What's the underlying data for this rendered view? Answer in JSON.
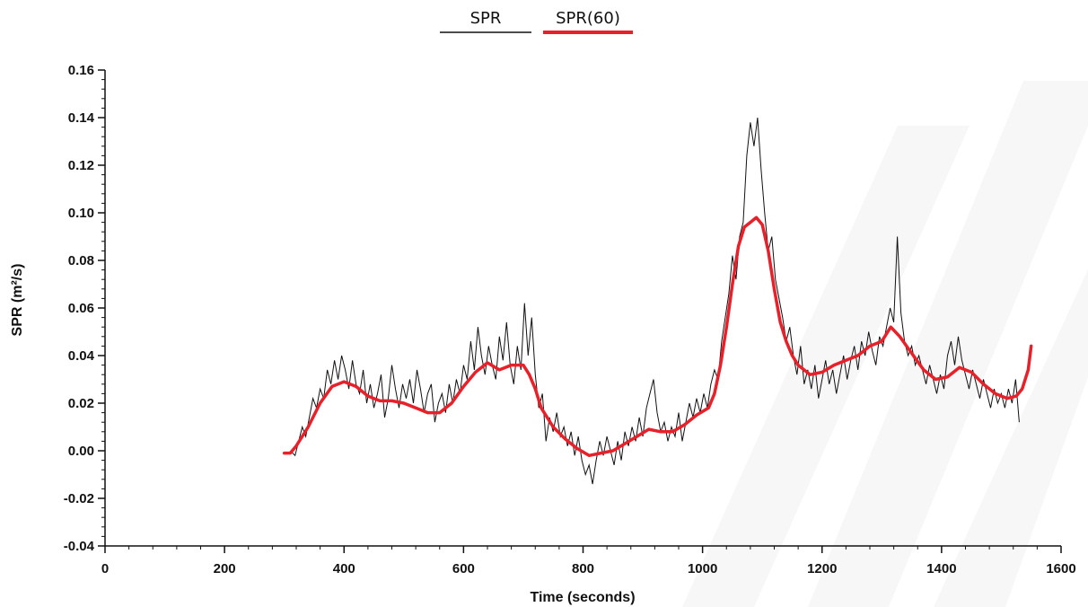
{
  "chart_data": {
    "type": "line",
    "title": "",
    "xlabel": "Time (seconds)",
    "ylabel": "SPR (m²/s)",
    "xlim": [
      0,
      1600
    ],
    "ylim": [
      -0.04,
      0.16
    ],
    "x_ticks": [
      0,
      200,
      400,
      600,
      800,
      1000,
      1200,
      1400,
      1600
    ],
    "y_ticks": [
      -0.04,
      -0.02,
      0.0,
      0.02,
      0.04,
      0.06,
      0.08,
      0.1,
      0.12,
      0.14,
      0.16
    ],
    "y_tick_labels": [
      "-0.04",
      "-0.02",
      "0.00",
      "0.02",
      "0.04",
      "0.06",
      "0.08",
      "0.10",
      "0.12",
      "0.14",
      "0.16"
    ],
    "x_tick_labels": [
      "0",
      "200",
      "400",
      "600",
      "800",
      "1000",
      "1200",
      "1400",
      "1600"
    ],
    "grid": false,
    "legend": {
      "placement": "top-center",
      "entries": [
        {
          "label": "SPR",
          "color": "#111111"
        },
        {
          "label": "SPR(60)",
          "color": "#e8202a"
        }
      ]
    },
    "series": [
      {
        "name": "SPR",
        "color": "#111111",
        "points": [
          [
            310,
            0.0
          ],
          [
            318,
            -0.002
          ],
          [
            324,
            0.004
          ],
          [
            330,
            0.01
          ],
          [
            336,
            0.006
          ],
          [
            342,
            0.014
          ],
          [
            348,
            0.022
          ],
          [
            354,
            0.018
          ],
          [
            360,
            0.026
          ],
          [
            366,
            0.022
          ],
          [
            372,
            0.034
          ],
          [
            378,
            0.028
          ],
          [
            384,
            0.038
          ],
          [
            390,
            0.03
          ],
          [
            396,
            0.04
          ],
          [
            402,
            0.034
          ],
          [
            408,
            0.026
          ],
          [
            414,
            0.038
          ],
          [
            420,
            0.028
          ],
          [
            426,
            0.024
          ],
          [
            432,
            0.034
          ],
          [
            438,
            0.02
          ],
          [
            444,
            0.028
          ],
          [
            450,
            0.018
          ],
          [
            456,
            0.024
          ],
          [
            462,
            0.032
          ],
          [
            468,
            0.014
          ],
          [
            474,
            0.022
          ],
          [
            480,
            0.036
          ],
          [
            486,
            0.026
          ],
          [
            492,
            0.018
          ],
          [
            498,
            0.028
          ],
          [
            504,
            0.022
          ],
          [
            510,
            0.03
          ],
          [
            516,
            0.02
          ],
          [
            522,
            0.034
          ],
          [
            528,
            0.026
          ],
          [
            534,
            0.016
          ],
          [
            540,
            0.024
          ],
          [
            546,
            0.028
          ],
          [
            552,
            0.012
          ],
          [
            558,
            0.02
          ],
          [
            564,
            0.024
          ],
          [
            570,
            0.016
          ],
          [
            576,
            0.028
          ],
          [
            582,
            0.02
          ],
          [
            588,
            0.03
          ],
          [
            594,
            0.024
          ],
          [
            600,
            0.036
          ],
          [
            606,
            0.03
          ],
          [
            612,
            0.046
          ],
          [
            618,
            0.034
          ],
          [
            624,
            0.052
          ],
          [
            630,
            0.04
          ],
          [
            636,
            0.032
          ],
          [
            642,
            0.044
          ],
          [
            648,
            0.036
          ],
          [
            654,
            0.03
          ],
          [
            660,
            0.048
          ],
          [
            666,
            0.038
          ],
          [
            672,
            0.054
          ],
          [
            678,
            0.036
          ],
          [
            684,
            0.028
          ],
          [
            690,
            0.044
          ],
          [
            696,
            0.034
          ],
          [
            702,
            0.062
          ],
          [
            708,
            0.04
          ],
          [
            714,
            0.056
          ],
          [
            720,
            0.032
          ],
          [
            726,
            0.018
          ],
          [
            732,
            0.024
          ],
          [
            738,
            0.004
          ],
          [
            744,
            0.014
          ],
          [
            750,
            0.008
          ],
          [
            756,
            0.016
          ],
          [
            762,
            0.006
          ],
          [
            768,
            0.01
          ],
          [
            774,
            0.002
          ],
          [
            780,
            0.008
          ],
          [
            786,
            -0.002
          ],
          [
            792,
            0.006
          ],
          [
            798,
            -0.004
          ],
          [
            804,
            -0.01
          ],
          [
            810,
            -0.006
          ],
          [
            816,
            -0.014
          ],
          [
            822,
            -0.004
          ],
          [
            828,
            0.004
          ],
          [
            834,
            -0.002
          ],
          [
            840,
            0.006
          ],
          [
            846,
            0.0
          ],
          [
            852,
            -0.006
          ],
          [
            858,
            0.004
          ],
          [
            864,
            -0.004
          ],
          [
            870,
            0.008
          ],
          [
            876,
            0.002
          ],
          [
            882,
            0.01
          ],
          [
            888,
            0.004
          ],
          [
            894,
            0.014
          ],
          [
            900,
            0.006
          ],
          [
            906,
            0.018
          ],
          [
            912,
            0.024
          ],
          [
            918,
            0.03
          ],
          [
            924,
            0.016
          ],
          [
            930,
            0.008
          ],
          [
            936,
            0.012
          ],
          [
            942,
            0.004
          ],
          [
            948,
            0.01
          ],
          [
            954,
            0.006
          ],
          [
            960,
            0.016
          ],
          [
            966,
            0.004
          ],
          [
            972,
            0.012
          ],
          [
            978,
            0.02
          ],
          [
            984,
            0.014
          ],
          [
            990,
            0.022
          ],
          [
            996,
            0.016
          ],
          [
            1002,
            0.024
          ],
          [
            1008,
            0.018
          ],
          [
            1014,
            0.028
          ],
          [
            1020,
            0.034
          ],
          [
            1026,
            0.03
          ],
          [
            1032,
            0.046
          ],
          [
            1038,
            0.056
          ],
          [
            1044,
            0.066
          ],
          [
            1050,
            0.082
          ],
          [
            1056,
            0.072
          ],
          [
            1062,
            0.09
          ],
          [
            1068,
            0.096
          ],
          [
            1074,
            0.124
          ],
          [
            1080,
            0.138
          ],
          [
            1086,
            0.128
          ],
          [
            1092,
            0.14
          ],
          [
            1098,
            0.118
          ],
          [
            1104,
            0.1
          ],
          [
            1110,
            0.084
          ],
          [
            1116,
            0.09
          ],
          [
            1122,
            0.072
          ],
          [
            1128,
            0.064
          ],
          [
            1134,
            0.056
          ],
          [
            1140,
            0.046
          ],
          [
            1146,
            0.052
          ],
          [
            1152,
            0.04
          ],
          [
            1158,
            0.032
          ],
          [
            1164,
            0.044
          ],
          [
            1170,
            0.028
          ],
          [
            1176,
            0.034
          ],
          [
            1182,
            0.026
          ],
          [
            1188,
            0.036
          ],
          [
            1194,
            0.022
          ],
          [
            1200,
            0.03
          ],
          [
            1206,
            0.038
          ],
          [
            1212,
            0.028
          ],
          [
            1218,
            0.034
          ],
          [
            1224,
            0.024
          ],
          [
            1230,
            0.032
          ],
          [
            1236,
            0.04
          ],
          [
            1242,
            0.03
          ],
          [
            1248,
            0.038
          ],
          [
            1254,
            0.044
          ],
          [
            1260,
            0.034
          ],
          [
            1266,
            0.046
          ],
          [
            1272,
            0.04
          ],
          [
            1278,
            0.05
          ],
          [
            1284,
            0.042
          ],
          [
            1290,
            0.036
          ],
          [
            1296,
            0.048
          ],
          [
            1302,
            0.044
          ],
          [
            1308,
            0.052
          ],
          [
            1314,
            0.06
          ],
          [
            1320,
            0.054
          ],
          [
            1326,
            0.09
          ],
          [
            1332,
            0.058
          ],
          [
            1338,
            0.046
          ],
          [
            1344,
            0.04
          ],
          [
            1350,
            0.044
          ],
          [
            1356,
            0.036
          ],
          [
            1362,
            0.04
          ],
          [
            1368,
            0.034
          ],
          [
            1374,
            0.028
          ],
          [
            1380,
            0.036
          ],
          [
            1386,
            0.03
          ],
          [
            1392,
            0.024
          ],
          [
            1398,
            0.032
          ],
          [
            1404,
            0.026
          ],
          [
            1410,
            0.04
          ],
          [
            1416,
            0.046
          ],
          [
            1422,
            0.036
          ],
          [
            1428,
            0.048
          ],
          [
            1434,
            0.038
          ],
          [
            1440,
            0.032
          ],
          [
            1446,
            0.026
          ],
          [
            1452,
            0.034
          ],
          [
            1458,
            0.028
          ],
          [
            1464,
            0.022
          ],
          [
            1470,
            0.03
          ],
          [
            1476,
            0.024
          ],
          [
            1482,
            0.018
          ],
          [
            1488,
            0.026
          ],
          [
            1494,
            0.02
          ],
          [
            1500,
            0.024
          ],
          [
            1506,
            0.018
          ],
          [
            1512,
            0.026
          ],
          [
            1518,
            0.02
          ],
          [
            1524,
            0.03
          ],
          [
            1530,
            0.012
          ]
        ]
      },
      {
        "name": "SPR(60)",
        "color": "#e8202a",
        "points": [
          [
            300,
            -0.001
          ],
          [
            310,
            -0.001
          ],
          [
            320,
            0.002
          ],
          [
            340,
            0.01
          ],
          [
            360,
            0.02
          ],
          [
            380,
            0.027
          ],
          [
            400,
            0.029
          ],
          [
            420,
            0.027
          ],
          [
            440,
            0.023
          ],
          [
            460,
            0.021
          ],
          [
            480,
            0.021
          ],
          [
            500,
            0.02
          ],
          [
            520,
            0.018
          ],
          [
            540,
            0.016
          ],
          [
            560,
            0.016
          ],
          [
            580,
            0.02
          ],
          [
            600,
            0.027
          ],
          [
            620,
            0.033
          ],
          [
            640,
            0.037
          ],
          [
            660,
            0.034
          ],
          [
            680,
            0.036
          ],
          [
            700,
            0.036
          ],
          [
            710,
            0.032
          ],
          [
            720,
            0.026
          ],
          [
            730,
            0.018
          ],
          [
            750,
            0.01
          ],
          [
            770,
            0.005
          ],
          [
            790,
            0.001
          ],
          [
            810,
            -0.002
          ],
          [
            830,
            -0.001
          ],
          [
            850,
            0.0
          ],
          [
            870,
            0.003
          ],
          [
            890,
            0.006
          ],
          [
            910,
            0.009
          ],
          [
            930,
            0.008
          ],
          [
            950,
            0.008
          ],
          [
            970,
            0.011
          ],
          [
            990,
            0.015
          ],
          [
            1010,
            0.018
          ],
          [
            1020,
            0.024
          ],
          [
            1030,
            0.036
          ],
          [
            1040,
            0.052
          ],
          [
            1050,
            0.07
          ],
          [
            1060,
            0.086
          ],
          [
            1070,
            0.094
          ],
          [
            1080,
            0.096
          ],
          [
            1090,
            0.098
          ],
          [
            1100,
            0.095
          ],
          [
            1110,
            0.084
          ],
          [
            1120,
            0.068
          ],
          [
            1130,
            0.054
          ],
          [
            1140,
            0.046
          ],
          [
            1150,
            0.04
          ],
          [
            1160,
            0.036
          ],
          [
            1180,
            0.032
          ],
          [
            1200,
            0.033
          ],
          [
            1220,
            0.036
          ],
          [
            1240,
            0.038
          ],
          [
            1260,
            0.04
          ],
          [
            1280,
            0.044
          ],
          [
            1300,
            0.046
          ],
          [
            1315,
            0.052
          ],
          [
            1330,
            0.048
          ],
          [
            1350,
            0.041
          ],
          [
            1370,
            0.034
          ],
          [
            1390,
            0.03
          ],
          [
            1410,
            0.031
          ],
          [
            1430,
            0.035
          ],
          [
            1450,
            0.033
          ],
          [
            1470,
            0.028
          ],
          [
            1490,
            0.024
          ],
          [
            1510,
            0.022
          ],
          [
            1525,
            0.023
          ],
          [
            1535,
            0.026
          ],
          [
            1545,
            0.034
          ],
          [
            1550,
            0.044
          ]
        ]
      }
    ]
  },
  "style": {
    "axis_color": "#111111",
    "spr_color": "#111111",
    "spr60_color": "#e8202a",
    "watermark_color": "#eeeeee"
  }
}
